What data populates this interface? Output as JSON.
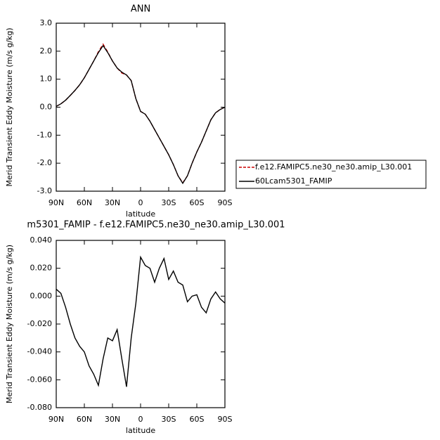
{
  "chart_data": [
    {
      "type": "line",
      "title": "ANN",
      "ylabel": "Merid Transient Eddy Moisture (m/s g/kg)",
      "xlabel": "latitude",
      "x": [
        90,
        85,
        80,
        75,
        70,
        65,
        60,
        55,
        50,
        45,
        40,
        35,
        30,
        25,
        20,
        15,
        10,
        5,
        0,
        -5,
        -10,
        -15,
        -20,
        -25,
        -30,
        -35,
        -40,
        -45,
        -50,
        -55,
        -60,
        -65,
        -70,
        -75,
        -80,
        -85,
        -90
      ],
      "series": [
        {
          "name": "f.e12.FAMIPC5.ne30_ne30.amip_L30.001",
          "color": "#cc0000",
          "dashed": true,
          "values": [
            0.03,
            0.12,
            0.25,
            0.42,
            0.6,
            0.8,
            1.05,
            1.35,
            1.65,
            1.98,
            2.25,
            1.97,
            1.65,
            1.4,
            1.22,
            1.15,
            0.95,
            0.3,
            -0.15,
            -0.25,
            -0.5,
            -0.8,
            -1.1,
            -1.4,
            -1.7,
            -2.05,
            -2.45,
            -2.7,
            -2.45,
            -2.0,
            -1.6,
            -1.25,
            -0.85,
            -0.45,
            -0.2,
            -0.08,
            0.0
          ]
        },
        {
          "name": "60Lcam5301_FAMIP",
          "color": "#000000",
          "dashed": false,
          "values": [
            0.03,
            0.12,
            0.25,
            0.42,
            0.6,
            0.8,
            1.05,
            1.35,
            1.65,
            1.95,
            2.2,
            1.95,
            1.65,
            1.4,
            1.25,
            1.15,
            0.95,
            0.3,
            -0.15,
            -0.25,
            -0.5,
            -0.8,
            -1.1,
            -1.4,
            -1.7,
            -2.05,
            -2.45,
            -2.72,
            -2.45,
            -2.0,
            -1.6,
            -1.25,
            -0.85,
            -0.45,
            -0.2,
            -0.08,
            0.0
          ]
        }
      ],
      "xlim": [
        90,
        -90
      ],
      "xticks": [
        {
          "value": 90,
          "label": "90N"
        },
        {
          "value": 60,
          "label": "60N"
        },
        {
          "value": 30,
          "label": "30N"
        },
        0,
        {
          "value": -30,
          "label": "30S"
        },
        {
          "value": -60,
          "label": "60S"
        },
        {
          "value": -90,
          "label": "90S"
        }
      ],
      "ylim": [
        -3,
        3
      ],
      "yticks": [
        {
          "value": -3,
          "label": "-3.0"
        },
        {
          "value": -2,
          "label": "-2.0"
        },
        {
          "value": -1,
          "label": "-1.0"
        },
        {
          "value": 0,
          "label": "0.0"
        },
        {
          "value": 1,
          "label": "1.0"
        },
        {
          "value": 2,
          "label": "2.0"
        },
        {
          "value": 3,
          "label": "3.0"
        }
      ],
      "legend": "right"
    },
    {
      "type": "line",
      "title": "m5301_FAMIP - f.e12.FAMIPC5.ne30_ne30.amip_L30.001",
      "ylabel": "Merid Transient Eddy Moisture (m/s g/kg)",
      "xlabel": "latitude",
      "x": [
        90,
        85,
        80,
        75,
        70,
        65,
        60,
        55,
        50,
        45,
        40,
        35,
        30,
        25,
        20,
        15,
        10,
        5,
        0,
        -5,
        -10,
        -15,
        -20,
        -25,
        -30,
        -35,
        -40,
        -45,
        -50,
        -55,
        -60,
        -65,
        -70,
        -75,
        -80,
        -85,
        -90
      ],
      "series": [
        {
          "color": "#000000",
          "dashed": false,
          "values": [
            0.005,
            0.002,
            -0.008,
            -0.02,
            -0.03,
            -0.036,
            -0.04,
            -0.05,
            -0.056,
            -0.064,
            -0.045,
            -0.03,
            -0.032,
            -0.024,
            -0.045,
            -0.065,
            -0.03,
            -0.005,
            0.028,
            0.022,
            0.02,
            0.01,
            0.02,
            0.027,
            0.012,
            0.018,
            0.01,
            0.008,
            -0.004,
            0.0,
            0.001,
            -0.008,
            -0.012,
            -0.002,
            0.003,
            -0.002,
            -0.005
          ]
        }
      ],
      "xlim": [
        90,
        -90
      ],
      "xticks": [
        {
          "value": 90,
          "label": "90N"
        },
        {
          "value": 60,
          "label": "60N"
        },
        {
          "value": 30,
          "label": "30N"
        },
        0,
        {
          "value": -30,
          "label": "30S"
        },
        {
          "value": -60,
          "label": "60S"
        },
        {
          "value": -90,
          "label": "90S"
        }
      ],
      "ylim": [
        -0.08,
        0.04
      ],
      "yticks": [
        {
          "value": -0.08,
          "label": "-0.080"
        },
        {
          "value": -0.06,
          "label": "-0.060"
        },
        {
          "value": -0.04,
          "label": "-0.040"
        },
        {
          "value": -0.02,
          "label": "-0.020"
        },
        {
          "value": 0,
          "label": "0.000"
        },
        {
          "value": 0.02,
          "label": "0.020"
        },
        {
          "value": 0.04,
          "label": "0.040"
        }
      ]
    }
  ]
}
